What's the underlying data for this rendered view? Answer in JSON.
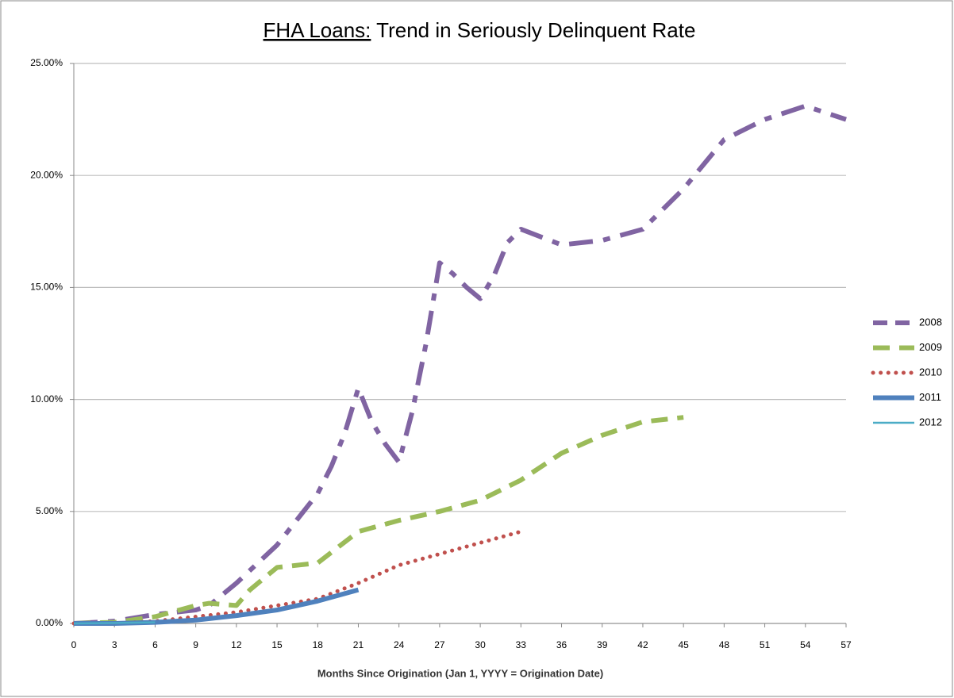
{
  "chart_data": {
    "type": "line",
    "title": [
      "FHA Loans:",
      "Trend in Seriously Delinquent Rate"
    ],
    "x_label": "Months Since Origination (Jan 1, YYYY = Origination Date)",
    "xlim": [
      0,
      57
    ],
    "xticks": [
      0,
      3,
      6,
      9,
      12,
      15,
      18,
      21,
      24,
      27,
      30,
      33,
      36,
      39,
      42,
      45,
      48,
      51,
      54,
      57
    ],
    "ylim": [
      0,
      25
    ],
    "yticks": [
      {
        "value": 0,
        "label": "0.00%"
      },
      {
        "value": 5,
        "label": "5.00%"
      },
      {
        "value": 10,
        "label": "10.00%"
      },
      {
        "value": 15,
        "label": "15.00%"
      },
      {
        "value": 20,
        "label": "20.00%"
      },
      {
        "value": 25,
        "label": "25.00%"
      }
    ],
    "grid": true,
    "legend": "right",
    "series": [
      {
        "name": "2008",
        "color": "#8064a2",
        "style": "dashdot",
        "width": 6,
        "x": [
          0,
          3,
          6,
          9,
          10,
          12,
          15,
          18,
          19,
          20,
          21,
          22,
          23,
          24,
          25,
          26,
          27,
          28,
          29,
          30,
          31,
          32,
          33,
          36,
          39,
          42,
          45,
          48,
          51,
          54,
          57
        ],
        "values": [
          0,
          0.1,
          0.4,
          0.6,
          0.8,
          1.8,
          3.5,
          5.8,
          7,
          8.5,
          10.5,
          9,
          8,
          7.2,
          9.5,
          12.5,
          16.1,
          15.6,
          15,
          14.5,
          15.5,
          17,
          17.6,
          16.9,
          17.1,
          17.6,
          19.4,
          21.6,
          22.5,
          23.1,
          22.5
        ]
      },
      {
        "name": "2009",
        "color": "#9bbb59",
        "style": "dash",
        "width": 6,
        "x": [
          0,
          3,
          6,
          9,
          10,
          12,
          13,
          15,
          18,
          21,
          24,
          27,
          30,
          33,
          36,
          39,
          42,
          45
        ],
        "values": [
          0,
          0.05,
          0.3,
          0.8,
          0.9,
          0.8,
          1.5,
          2.5,
          2.7,
          4.1,
          4.6,
          5,
          5.5,
          6.4,
          7.6,
          8.4,
          9,
          9.2
        ]
      },
      {
        "name": "2010",
        "color": "#c0504d",
        "style": "dot",
        "width": 5,
        "x": [
          0,
          3,
          6,
          9,
          12,
          15,
          18,
          21,
          24,
          27,
          30,
          33
        ],
        "values": [
          0,
          0,
          0.1,
          0.3,
          0.5,
          0.8,
          1.1,
          1.8,
          2.6,
          3.1,
          3.6,
          4.1
        ]
      },
      {
        "name": "2011",
        "color": "#4f81bd",
        "style": "solid",
        "width": 6,
        "x": [
          0,
          3,
          6,
          9,
          12,
          15,
          18,
          21
        ],
        "values": [
          0,
          0,
          0.05,
          0.15,
          0.35,
          0.6,
          1,
          1.5
        ]
      },
      {
        "name": "2012",
        "color": "#4bacc6",
        "style": "solid",
        "width": 2.5,
        "x": [
          0,
          3,
          6
        ],
        "values": [
          0,
          0.02,
          0.05
        ]
      }
    ]
  }
}
